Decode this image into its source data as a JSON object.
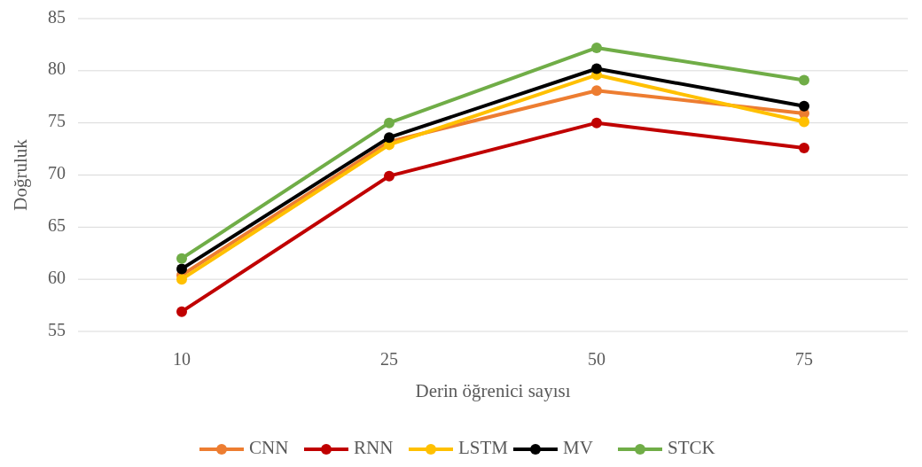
{
  "chart_data": {
    "type": "line",
    "xlabel": "Derin öğrenici sayısı",
    "ylabel": "Doğruluk",
    "categories": [
      "10",
      "25",
      "50",
      "75"
    ],
    "series": [
      {
        "name": "CNN",
        "color": "#ed7d31",
        "values": [
          60.4,
          73.2,
          78.1,
          75.9
        ]
      },
      {
        "name": "RNN",
        "color": "#c00000",
        "values": [
          56.9,
          69.9,
          75.0,
          72.6
        ]
      },
      {
        "name": "LSTM",
        "color": "#ffc000",
        "values": [
          60.0,
          72.9,
          79.6,
          75.1
        ]
      },
      {
        "name": "MV",
        "color": "#000000",
        "values": [
          61.0,
          73.6,
          80.2,
          76.6
        ]
      },
      {
        "name": "STCK",
        "color": "#70ad47",
        "values": [
          62.0,
          75.0,
          82.2,
          79.1
        ]
      }
    ],
    "ylim": [
      55,
      85
    ],
    "yticks": [
      55,
      60,
      65,
      70,
      75,
      80,
      85
    ],
    "grid": "y",
    "legend": "bottom",
    "marker": "circle",
    "line_style": "solid"
  }
}
